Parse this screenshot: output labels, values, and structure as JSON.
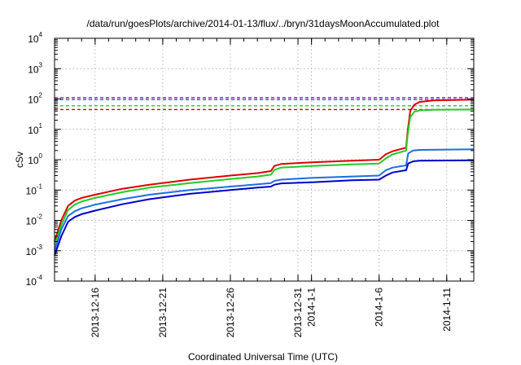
{
  "chart_data": {
    "type": "line",
    "title": "/data/run/goesPlots/archive/2014-01-13/flux/../bryn/31daysMoonAccumulated.plot",
    "xlabel": "Coordinated Universal Time (UTC)",
    "ylabel": "cSv",
    "yscale": "log",
    "ylim": [
      0.0001,
      10000
    ],
    "xlim": [
      "2013-12-13",
      "2014-01-13"
    ],
    "grid": true,
    "y_ticks": [
      {
        "base": "10",
        "exp": "-4",
        "value": 0.0001
      },
      {
        "base": "10",
        "exp": "-3",
        "value": 0.001
      },
      {
        "base": "10",
        "exp": "-2",
        "value": 0.01
      },
      {
        "base": "10",
        "exp": "-1",
        "value": 0.1
      },
      {
        "base": "10",
        "exp": "0",
        "value": 1
      },
      {
        "base": "10",
        "exp": "1",
        "value": 10
      },
      {
        "base": "10",
        "exp": "2",
        "value": 100
      },
      {
        "base": "10",
        "exp": "3",
        "value": 1000
      },
      {
        "base": "10",
        "exp": "4",
        "value": 10000
      }
    ],
    "x_ticks": [
      {
        "label": "2013-12-16",
        "value": "2013-12-16"
      },
      {
        "label": "2013-12-21",
        "value": "2013-12-21"
      },
      {
        "label": "2013-12-26",
        "value": "2013-12-26"
      },
      {
        "label": "2013-12-31",
        "value": "2013-12-31"
      },
      {
        "label": "2014-1-1",
        "value": "2014-01-01"
      },
      {
        "label": "2014-1-6",
        "value": "2014-01-06"
      },
      {
        "label": "2014-1-11",
        "value": "2014-01-11"
      }
    ],
    "thresholds": [
      {
        "color": "#9400d3",
        "value": 110
      },
      {
        "color": "#1a6fe0",
        "value": 95
      },
      {
        "color": "#22cc22",
        "value": 60
      },
      {
        "color": "#dd0000",
        "value": 45
      }
    ],
    "series": [
      {
        "color": "#dd0000",
        "x": [
          "2013-12-13",
          "2013-12-13T12:00",
          "2013-12-14",
          "2013-12-14T12:00",
          "2013-12-15",
          "2013-12-16",
          "2013-12-18",
          "2013-12-20",
          "2013-12-23",
          "2013-12-26",
          "2013-12-28",
          "2013-12-29",
          "2013-12-29T06:00",
          "2013-12-29T18:00",
          "2014-01-01",
          "2014-01-04",
          "2014-01-06",
          "2014-01-06T12:00",
          "2014-01-07",
          "2014-01-08",
          "2014-01-08T02:24",
          "2014-01-08T07:12",
          "2014-01-08T14:24",
          "2014-01-09",
          "2014-01-10",
          "2014-01-13"
        ],
        "y": [
          0.002,
          0.01,
          0.03,
          0.045,
          0.055,
          0.07,
          0.11,
          0.15,
          0.22,
          0.3,
          0.36,
          0.42,
          0.62,
          0.72,
          0.82,
          0.92,
          1.0,
          1.5,
          1.9,
          2.5,
          8,
          40,
          65,
          80,
          90,
          95
        ]
      },
      {
        "color": "#22cc22",
        "x": [
          "2013-12-13",
          "2013-12-13T12:00",
          "2013-12-14",
          "2013-12-14T12:00",
          "2013-12-15",
          "2013-12-16",
          "2013-12-18",
          "2013-12-20",
          "2013-12-23",
          "2013-12-26",
          "2013-12-28",
          "2013-12-29",
          "2013-12-29T06:00",
          "2013-12-29T18:00",
          "2014-01-01",
          "2014-01-04",
          "2014-01-06",
          "2014-01-06T12:00",
          "2014-01-07",
          "2014-01-08",
          "2014-01-08T02:24",
          "2014-01-08T07:12",
          "2014-01-08T14:24",
          "2014-01-09",
          "2014-01-10",
          "2014-01-13"
        ],
        "y": [
          0.0015,
          0.007,
          0.022,
          0.033,
          0.042,
          0.055,
          0.085,
          0.12,
          0.17,
          0.23,
          0.28,
          0.32,
          0.46,
          0.55,
          0.62,
          0.7,
          0.75,
          1.1,
          1.5,
          2.0,
          6,
          25,
          38,
          42,
          44,
          45
        ]
      },
      {
        "color": "#1a6fe0",
        "x": [
          "2013-12-13",
          "2013-12-13T12:00",
          "2013-12-14",
          "2013-12-14T12:00",
          "2013-12-15",
          "2013-12-16",
          "2013-12-18",
          "2013-12-20",
          "2013-12-23",
          "2013-12-26",
          "2013-12-28",
          "2013-12-29",
          "2013-12-29T06:00",
          "2013-12-29T18:00",
          "2014-01-01",
          "2014-01-04",
          "2014-01-06",
          "2014-01-06T12:00",
          "2014-01-07",
          "2014-01-08",
          "2014-01-08T03:36",
          "2014-01-08T12:00",
          "2014-01-09",
          "2014-01-13"
        ],
        "y": [
          0.001,
          0.005,
          0.014,
          0.02,
          0.025,
          0.033,
          0.05,
          0.07,
          0.1,
          0.13,
          0.155,
          0.17,
          0.2,
          0.22,
          0.25,
          0.28,
          0.3,
          0.45,
          0.55,
          0.65,
          1.6,
          2.0,
          2.1,
          2.2
        ]
      },
      {
        "color": "#0000cc",
        "x": [
          "2013-12-13",
          "2013-12-13T12:00",
          "2013-12-14",
          "2013-12-14T12:00",
          "2013-12-15",
          "2013-12-16",
          "2013-12-18",
          "2013-12-20",
          "2013-12-23",
          "2013-12-26",
          "2013-12-28",
          "2013-12-29",
          "2013-12-29T06:00",
          "2013-12-29T18:00",
          "2014-01-01",
          "2014-01-04",
          "2014-01-06",
          "2014-01-06T12:00",
          "2014-01-07",
          "2014-01-08",
          "2014-01-08T03:36",
          "2014-01-08T12:00",
          "2014-01-09",
          "2014-01-13"
        ],
        "y": [
          0.0007,
          0.003,
          0.009,
          0.013,
          0.016,
          0.021,
          0.034,
          0.05,
          0.075,
          0.1,
          0.12,
          0.13,
          0.15,
          0.165,
          0.18,
          0.21,
          0.22,
          0.3,
          0.38,
          0.45,
          0.75,
          0.88,
          0.92,
          0.95
        ]
      }
    ]
  }
}
